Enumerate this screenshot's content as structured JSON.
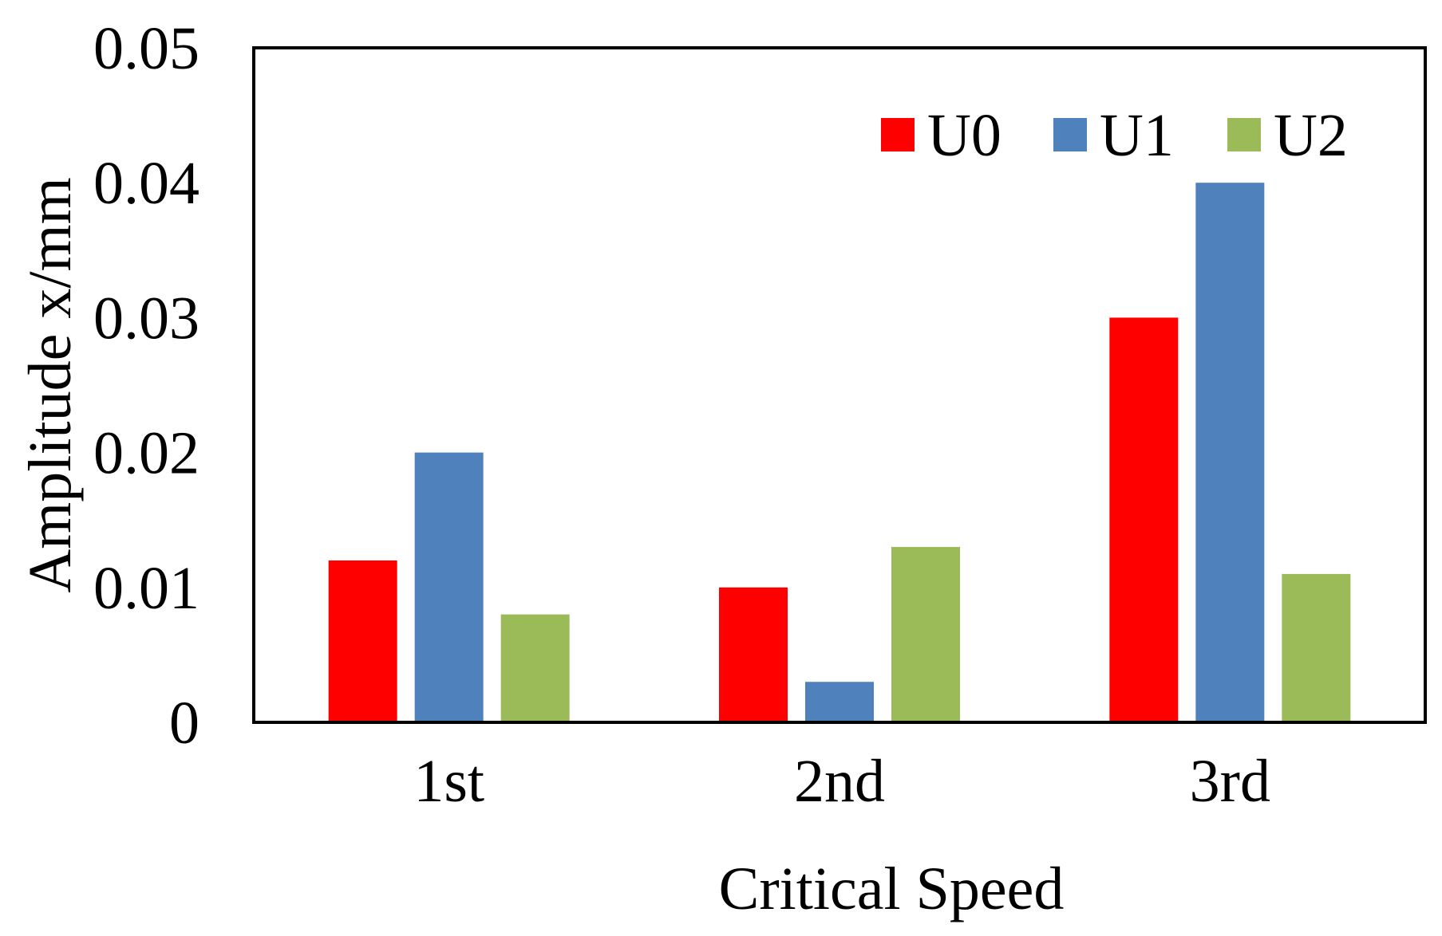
{
  "chart_data": {
    "type": "bar",
    "title": "",
    "xlabel": "Critical Speed",
    "ylabel": "Amplitude x/mm",
    "categories": [
      "1st",
      "2nd",
      "3rd"
    ],
    "series": [
      {
        "name": "U0",
        "color": "#ff0000",
        "values": [
          0.012,
          0.01,
          0.03
        ]
      },
      {
        "name": "U1",
        "color": "#4f81bd",
        "values": [
          0.02,
          0.003,
          0.04
        ]
      },
      {
        "name": "U2",
        "color": "#9bbb59",
        "values": [
          0.008,
          0.013,
          0.011
        ]
      }
    ],
    "ylim": [
      0,
      0.05
    ],
    "yticks": [
      "0",
      "0.01",
      "0.02",
      "0.03",
      "0.04",
      "0.05"
    ],
    "grid": false,
    "legend": "top-right"
  }
}
